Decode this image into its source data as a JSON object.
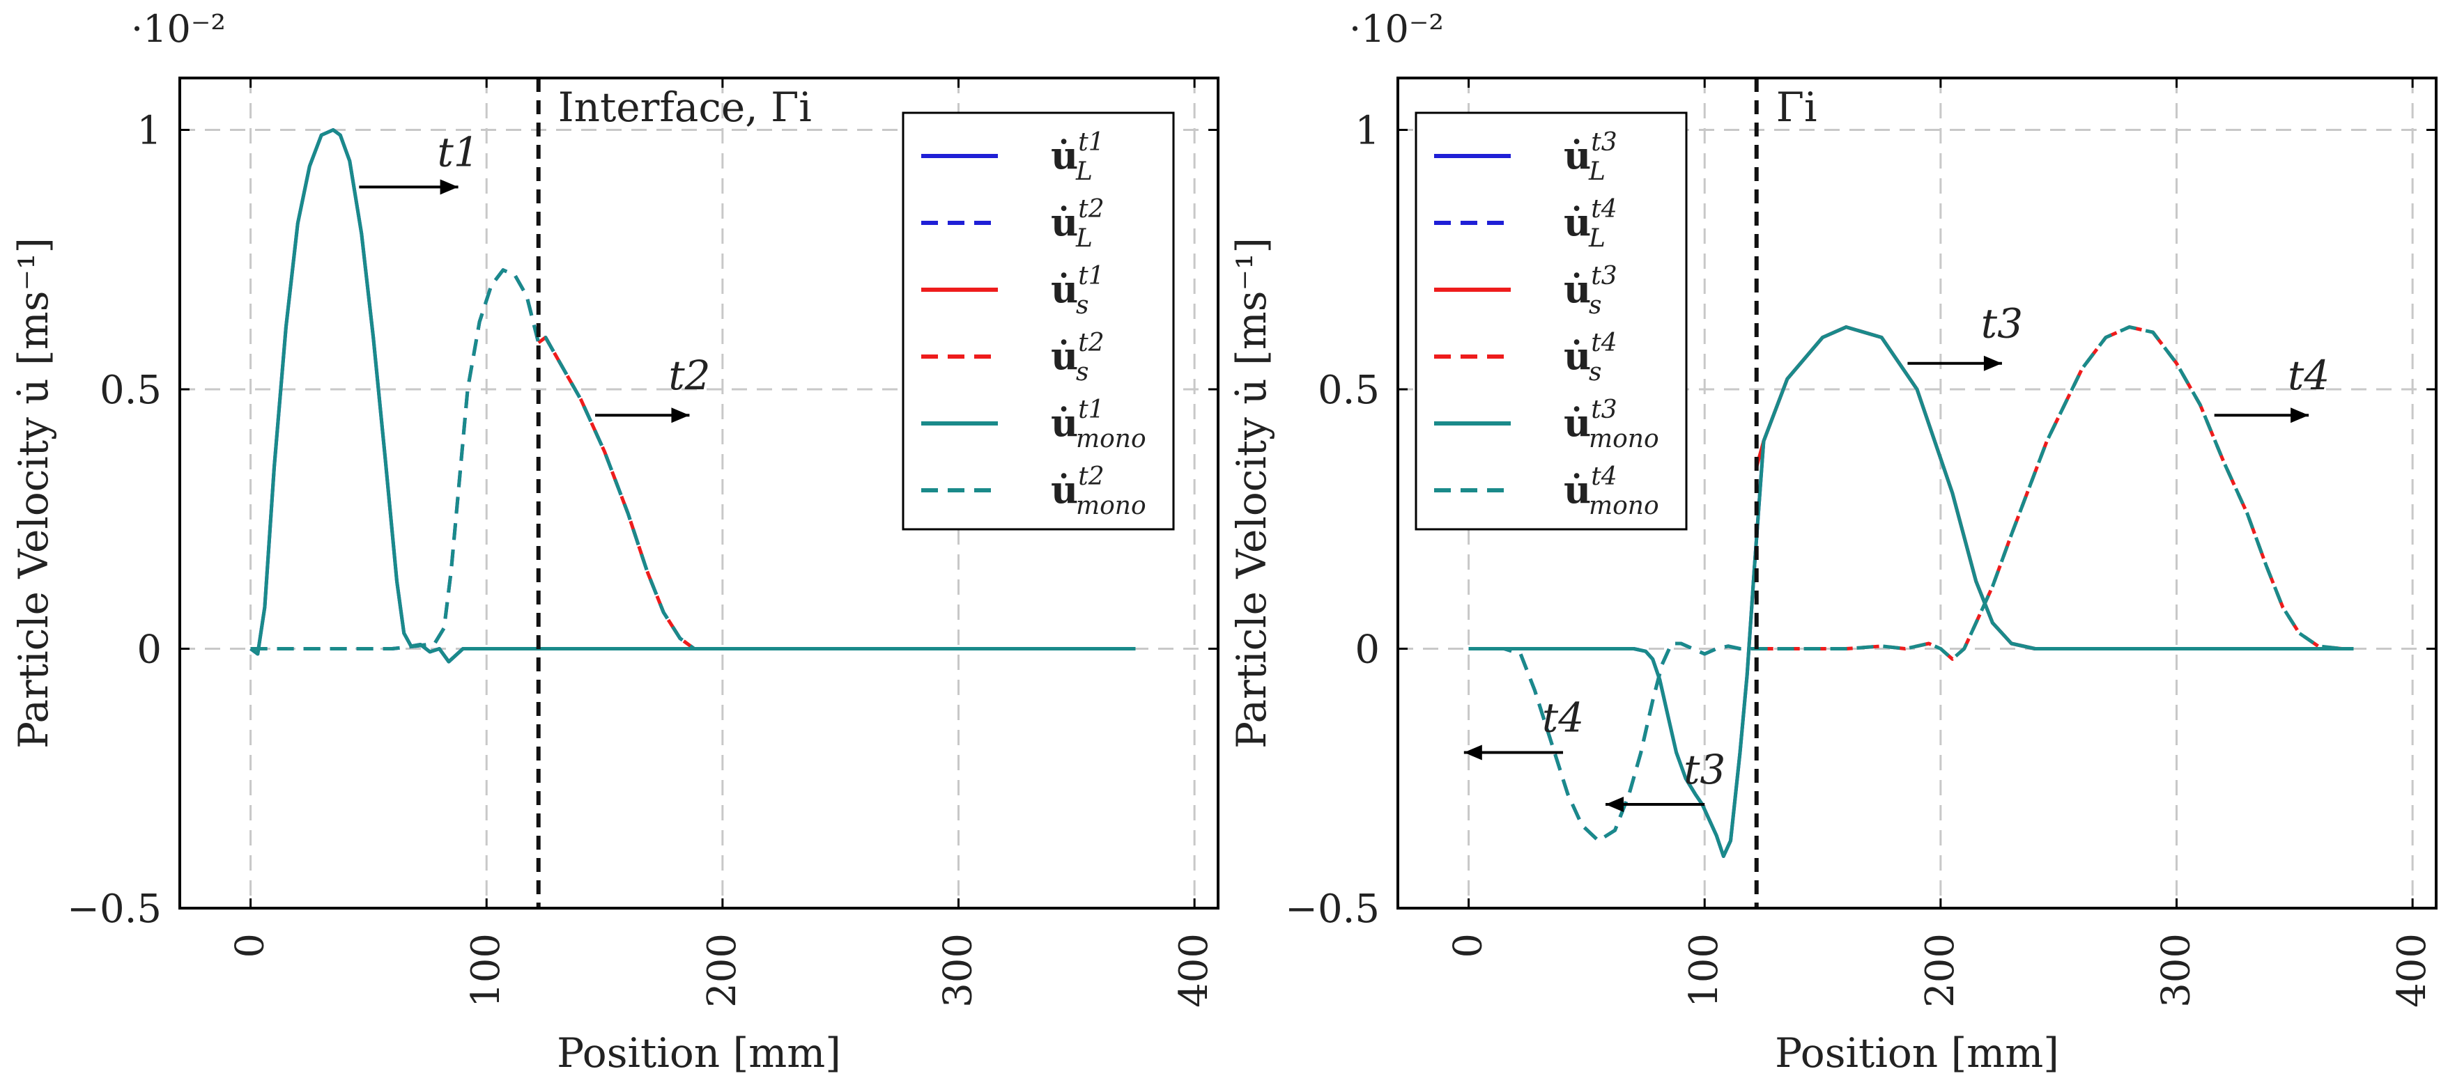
{
  "chart_data": [
    {
      "type": "line",
      "panel": "left",
      "xlabel": "Position [mm]",
      "ylabel": "Particle Velocity u̇ [ms⁻¹]",
      "y_multiplier": "·10⁻²",
      "xlim": [
        -30,
        410
      ],
      "ylim": [
        -0.5,
        1.1
      ],
      "xticks": [
        "0",
        "100",
        "200",
        "300",
        "400"
      ],
      "yticks": [
        "−0.5",
        "0",
        "0.5",
        "1"
      ],
      "grid": true,
      "legend_position": "top-right",
      "interface": {
        "x": 122,
        "label": "Interface, Γi"
      },
      "annotations": [
        {
          "text": "t1",
          "arrow_from": [
            46,
            0.89
          ],
          "arrow_to": [
            88,
            0.89
          ],
          "text_at": [
            88,
            0.93
          ]
        },
        {
          "text": "t2",
          "arrow_from": [
            146,
            0.45
          ],
          "arrow_to": [
            186,
            0.45
          ],
          "text_at": [
            186,
            0.5
          ]
        }
      ],
      "series": [
        {
          "name": "u̇L t1",
          "legend_main": "u̇",
          "legend_sub": "L",
          "legend_sup": "t1",
          "color": "#1f1fd6",
          "dash": "solid",
          "x": [
            0,
            3,
            6,
            10,
            15,
            20,
            25,
            30,
            35,
            38,
            42,
            47,
            52,
            57,
            62,
            65,
            68,
            72,
            76,
            80,
            84,
            90,
            120,
            200,
            300,
            375
          ],
          "y": [
            0,
            -0.01,
            0.08,
            0.35,
            0.62,
            0.82,
            0.93,
            0.99,
            1.0,
            0.99,
            0.94,
            0.8,
            0.6,
            0.37,
            0.13,
            0.03,
            0.005,
            0.008,
            -0.006,
            0,
            -0.025,
            0,
            0,
            0,
            0,
            0
          ]
        },
        {
          "name": "u̇L t2",
          "legend_main": "u̇",
          "legend_sub": "L",
          "legend_sup": "t2",
          "color": "#1f1fd6",
          "dash": "dashed",
          "x": [
            0,
            20,
            40,
            60,
            70,
            78,
            82,
            85,
            88,
            92,
            97,
            102,
            107,
            112,
            117,
            122,
            125,
            130,
            140,
            150,
            160,
            168,
            175,
            182,
            188,
            200,
            300,
            375
          ],
          "y": [
            0,
            0,
            0,
            0,
            0.005,
            0.01,
            0.04,
            0.15,
            0.3,
            0.5,
            0.63,
            0.7,
            0.73,
            0.72,
            0.68,
            0.59,
            0.6,
            0.56,
            0.48,
            0.38,
            0.26,
            0.15,
            0.07,
            0.02,
            0,
            0,
            0,
            0
          ]
        },
        {
          "name": "u̇s t1",
          "legend_main": "u̇",
          "legend_sub": "s",
          "legend_sup": "t1",
          "color": "#ee1c1c",
          "dash": "solid",
          "x": [
            122,
            200,
            300,
            375
          ],
          "y": [
            0,
            0,
            0,
            0
          ]
        },
        {
          "name": "u̇s t2",
          "legend_main": "u̇",
          "legend_sub": "s",
          "legend_sup": "t2",
          "color": "#ee1c1c",
          "dash": "dashed",
          "x": [
            122,
            125,
            130,
            140,
            150,
            160,
            168,
            175,
            182,
            188,
            200,
            300,
            375
          ],
          "y": [
            0.59,
            0.6,
            0.56,
            0.48,
            0.38,
            0.26,
            0.15,
            0.07,
            0.02,
            0,
            0,
            0,
            0
          ]
        },
        {
          "name": "u̇mono t1",
          "legend_main": "u̇",
          "legend_sub": "mono",
          "legend_sup": "t1",
          "color": "#1a8a8a",
          "dash": "solid",
          "x": [
            0,
            3,
            6,
            10,
            15,
            20,
            25,
            30,
            35,
            38,
            42,
            47,
            52,
            57,
            62,
            65,
            68,
            72,
            76,
            80,
            84,
            90,
            120,
            200,
            300,
            375
          ],
          "y": [
            0,
            -0.01,
            0.08,
            0.35,
            0.62,
            0.82,
            0.93,
            0.99,
            1.0,
            0.99,
            0.94,
            0.8,
            0.6,
            0.37,
            0.13,
            0.03,
            0.005,
            0.008,
            -0.006,
            0,
            -0.025,
            0,
            0,
            0,
            0,
            0
          ]
        },
        {
          "name": "u̇mono t2",
          "legend_main": "u̇",
          "legend_sub": "mono",
          "legend_sup": "t2",
          "color": "#1a8a8a",
          "dash": "dashed",
          "x": [
            0,
            20,
            40,
            60,
            70,
            78,
            82,
            85,
            88,
            92,
            97,
            102,
            107,
            112,
            117,
            122,
            125,
            130,
            140,
            150,
            160,
            168,
            175,
            182,
            188,
            200,
            300,
            375
          ],
          "y": [
            0,
            0,
            0,
            0,
            0.005,
            0.01,
            0.04,
            0.15,
            0.3,
            0.5,
            0.63,
            0.7,
            0.73,
            0.72,
            0.68,
            0.59,
            0.6,
            0.56,
            0.48,
            0.38,
            0.26,
            0.15,
            0.07,
            0.02,
            0,
            0,
            0,
            0
          ]
        }
      ]
    },
    {
      "type": "line",
      "panel": "right",
      "xlabel": "Position [mm]",
      "ylabel": "Particle Velocity u̇ [ms⁻¹]",
      "y_multiplier": "·10⁻²",
      "xlim": [
        -30,
        410
      ],
      "ylim": [
        -0.5,
        1.1
      ],
      "xticks": [
        "0",
        "100",
        "200",
        "300",
        "400"
      ],
      "yticks": [
        "−0.5",
        "0",
        "0.5",
        "1"
      ],
      "grid": true,
      "legend_position": "top-left",
      "interface": {
        "x": 122,
        "label": "Γi"
      },
      "annotations": [
        {
          "text": "t3",
          "arrow_from": [
            186,
            0.55
          ],
          "arrow_to": [
            226,
            0.55
          ],
          "text_at": [
            226,
            0.6
          ]
        },
        {
          "text": "t4",
          "arrow_from": [
            316,
            0.45
          ],
          "arrow_to": [
            356,
            0.45
          ],
          "text_at": [
            356,
            0.5
          ]
        },
        {
          "text": "t3",
          "arrow_from": [
            100,
            -0.3
          ],
          "arrow_to": [
            58,
            -0.3
          ],
          "text_at": [
            100,
            -0.26
          ]
        },
        {
          "text": "t4",
          "arrow_from": [
            40,
            -0.2
          ],
          "arrow_to": [
            -2,
            -0.2
          ],
          "text_at": [
            40,
            -0.16
          ]
        }
      ],
      "series": [
        {
          "name": "u̇L t3",
          "legend_main": "u̇",
          "legend_sub": "L",
          "legend_sup": "t3",
          "color": "#1f1fd6",
          "dash": "solid",
          "x": [
            0,
            20,
            40,
            60,
            70,
            75,
            78,
            81,
            84,
            88,
            92,
            96,
            99,
            102,
            105,
            108,
            111,
            115,
            118,
            121,
            125,
            135,
            150,
            160,
            175,
            190,
            205,
            215,
            222,
            230,
            240,
            260,
            300,
            375
          ],
          "y": [
            0,
            0,
            0,
            0,
            0,
            -0.005,
            -0.02,
            -0.06,
            -0.12,
            -0.2,
            -0.25,
            -0.28,
            -0.3,
            -0.33,
            -0.36,
            -0.4,
            -0.37,
            -0.2,
            -0.05,
            0.15,
            0.4,
            0.52,
            0.6,
            0.62,
            0.6,
            0.5,
            0.3,
            0.13,
            0.05,
            0.01,
            0,
            0,
            0,
            0
          ]
        },
        {
          "name": "u̇L t4",
          "legend_main": "u̇",
          "legend_sub": "L",
          "legend_sup": "t4",
          "color": "#1f1fd6",
          "dash": "dashed",
          "x": [
            0,
            15,
            22,
            28,
            35,
            42,
            48,
            55,
            62,
            68,
            73,
            78,
            82,
            86,
            90,
            95,
            100,
            105,
            110,
            115,
            122
          ],
          "y": [
            0,
            0,
            -0.01,
            -0.08,
            -0.18,
            -0.28,
            -0.34,
            -0.37,
            -0.35,
            -0.28,
            -0.2,
            -0.1,
            -0.03,
            0.01,
            0.01,
            0,
            -0.01,
            0,
            0.005,
            0,
            0
          ]
        },
        {
          "name": "u̇s t3",
          "legend_main": "u̇",
          "legend_sub": "s",
          "legend_sup": "t3",
          "color": "#ee1c1c",
          "dash": "solid",
          "x": [
            122,
            125,
            135,
            150,
            160,
            175,
            190,
            205,
            215,
            222,
            230,
            240,
            260,
            300,
            375
          ],
          "y": [
            0.35,
            0.4,
            0.52,
            0.6,
            0.62,
            0.6,
            0.5,
            0.3,
            0.13,
            0.05,
            0.01,
            0,
            0,
            0,
            0
          ]
        },
        {
          "name": "u̇s t4",
          "legend_main": "u̇",
          "legend_sub": "s",
          "legend_sup": "t4",
          "color": "#ee1c1c",
          "dash": "dashed",
          "x": [
            122,
            140,
            160,
            175,
            185,
            190,
            195,
            200,
            205,
            210,
            215,
            222,
            230,
            245,
            260,
            270,
            280,
            290,
            300,
            310,
            320,
            330,
            338,
            345,
            352,
            360,
            370,
            375
          ],
          "y": [
            0,
            0,
            0,
            0.005,
            0,
            0.005,
            0.01,
            0,
            -0.02,
            0,
            0.05,
            0.12,
            0.22,
            0.4,
            0.54,
            0.6,
            0.62,
            0.61,
            0.55,
            0.47,
            0.36,
            0.26,
            0.16,
            0.08,
            0.03,
            0.005,
            0,
            0
          ]
        },
        {
          "name": "u̇mono t3",
          "legend_main": "u̇",
          "legend_sub": "mono",
          "legend_sup": "t3",
          "color": "#1a8a8a",
          "dash": "solid",
          "x": [
            0,
            20,
            40,
            60,
            70,
            75,
            78,
            81,
            84,
            88,
            92,
            96,
            99,
            102,
            105,
            108,
            111,
            115,
            118,
            121,
            125,
            135,
            150,
            160,
            175,
            190,
            205,
            215,
            222,
            230,
            240,
            260,
            300,
            375
          ],
          "y": [
            0,
            0,
            0,
            0,
            0,
            -0.005,
            -0.02,
            -0.06,
            -0.12,
            -0.2,
            -0.25,
            -0.28,
            -0.3,
            -0.33,
            -0.36,
            -0.4,
            -0.37,
            -0.2,
            -0.05,
            0.15,
            0.4,
            0.52,
            0.6,
            0.62,
            0.6,
            0.5,
            0.3,
            0.13,
            0.05,
            0.01,
            0,
            0,
            0,
            0
          ]
        },
        {
          "name": "u̇mono t4",
          "legend_main": "u̇",
          "legend_sub": "mono",
          "legend_sup": "t4",
          "color": "#1a8a8a",
          "dash": "dashed",
          "x": [
            0,
            15,
            22,
            28,
            35,
            42,
            48,
            55,
            62,
            68,
            73,
            78,
            82,
            86,
            90,
            95,
            100,
            105,
            110,
            115,
            122,
            140,
            160,
            175,
            185,
            190,
            195,
            200,
            205,
            210,
            215,
            222,
            230,
            245,
            260,
            270,
            280,
            290,
            300,
            310,
            320,
            330,
            338,
            345,
            352,
            360,
            370,
            375
          ],
          "y": [
            0,
            0,
            -0.01,
            -0.08,
            -0.18,
            -0.28,
            -0.34,
            -0.37,
            -0.35,
            -0.28,
            -0.2,
            -0.1,
            -0.03,
            0.01,
            0.01,
            0,
            -0.01,
            0,
            0.005,
            0,
            0,
            0,
            0,
            0.005,
            0,
            0.005,
            0.01,
            0,
            -0.02,
            0,
            0.05,
            0.12,
            0.22,
            0.4,
            0.54,
            0.6,
            0.62,
            0.61,
            0.55,
            0.47,
            0.36,
            0.26,
            0.16,
            0.08,
            0.03,
            0.005,
            0,
            0
          ]
        }
      ]
    }
  ]
}
